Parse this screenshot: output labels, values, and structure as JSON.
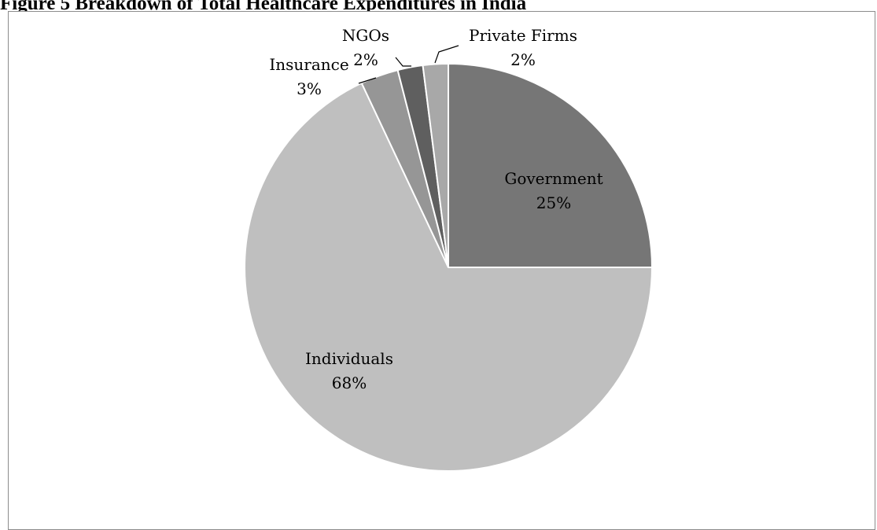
{
  "figure_title": "Figure 5 Breakdown of Total Healthcare Expenditures in India",
  "chart_data": {
    "type": "pie",
    "title": "Figure 5 Breakdown of Total Healthcare Expenditures in India",
    "start_angle_deg": 0,
    "direction": "clockwise",
    "slices": [
      {
        "label": "Government",
        "value": 25,
        "display": "25%",
        "color": "#767676"
      },
      {
        "label": "Individuals",
        "value": 68,
        "display": "68%",
        "color": "#bfbfbf"
      },
      {
        "label": "Insurance",
        "value": 3,
        "display": "3%",
        "color": "#969696"
      },
      {
        "label": "NGOs",
        "value": 2,
        "display": "2%",
        "color": "#5f5f5f"
      },
      {
        "label": "Private Firms",
        "value": 2,
        "display": "2%",
        "color": "#a8a8a8"
      }
    ]
  }
}
